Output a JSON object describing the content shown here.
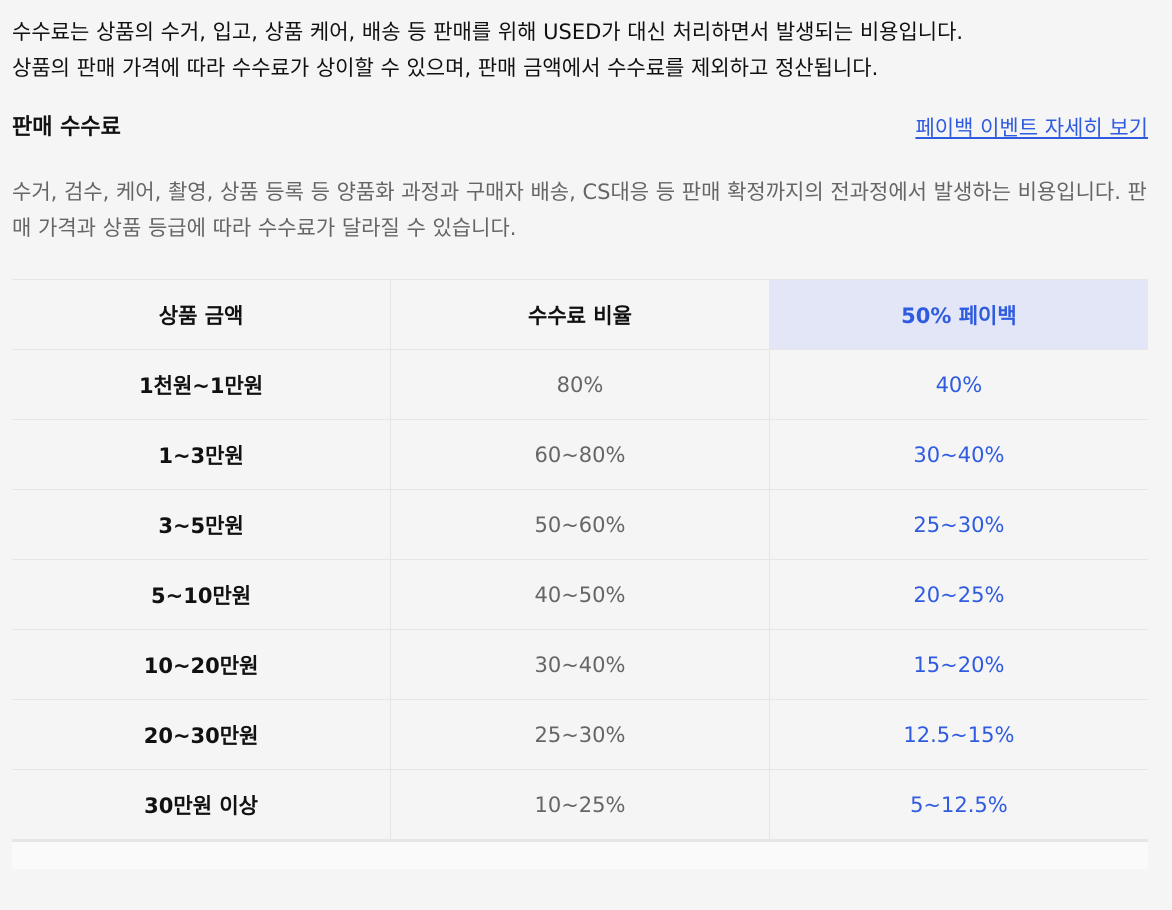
{
  "intro": [
    "수수료는 상품의 수거, 입고, 상품 케어, 배송 등 판매를 위해 USED가 대신 처리하면서 발생되는 비용입니다.",
    "상품의 판매 가격에 따라 수수료가 상이할 수 있으며, 판매 금액에서 수수료를 제외하고 정산됩니다."
  ],
  "section": {
    "title": "판매 수수료",
    "link": "페이백 이벤트 자세히 보기",
    "description": "수거, 검수, 케어, 촬영, 상품 등록 등 양품화 과정과 구매자 배송, CS대응 등 판매 확정까지의 전과정에서 발생하는 비용입니다. 판매 가격과 상품 등급에 따라 수수료가 달라질 수 있습니다."
  },
  "table": {
    "headers": [
      "상품 금액",
      "수수료 비율",
      "50% 페이백"
    ],
    "rows": [
      [
        "1천원~1만원",
        "80%",
        "40%"
      ],
      [
        "1~3만원",
        "60~80%",
        "30~40%"
      ],
      [
        "3~5만원",
        "50~60%",
        "25~30%"
      ],
      [
        "5~10만원",
        "40~50%",
        "20~25%"
      ],
      [
        "10~20만원",
        "30~40%",
        "15~20%"
      ],
      [
        "20~30만원",
        "25~30%",
        "12.5~15%"
      ],
      [
        "30만원 이상",
        "10~25%",
        "5~12.5%"
      ]
    ]
  }
}
